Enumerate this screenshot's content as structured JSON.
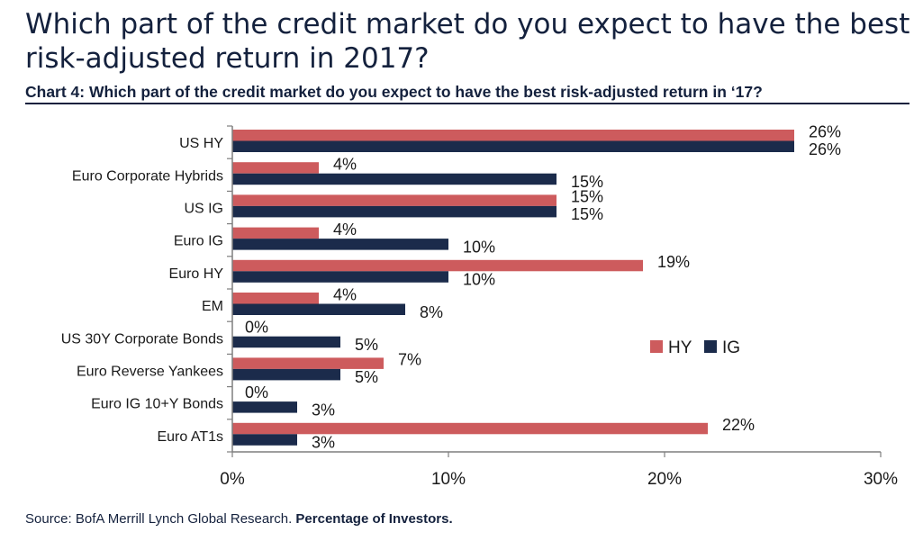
{
  "header": {
    "title": "Which part of the credit market do you expect to have the best risk-adjusted return in 2017?",
    "chart_title": "Chart 4: Which part of the credit market do you expect to have the best risk-adjusted return in ‘17?"
  },
  "footer": {
    "source": "Source: BofA Merrill Lynch Global Research.",
    "note": "Percentage of Investors."
  },
  "colors": {
    "hy": "#cd5b5d",
    "ig": "#1b2b4b",
    "axis": "#7f7f7f",
    "text": "#1a1a1a"
  },
  "chart_data": {
    "type": "bar",
    "orientation": "horizontal",
    "title": "Chart 4: Which part of the credit market do you expect to have the best risk-adjusted return in ‘17?",
    "categories": [
      "US HY",
      "Euro Corporate Hybrids",
      "US IG",
      "Euro IG",
      "Euro HY",
      "EM",
      "US 30Y Corporate Bonds",
      "Euro Reverse Yankees",
      "Euro IG 10+Y Bonds",
      "Euro AT1s"
    ],
    "series": [
      {
        "name": "HY",
        "values": [
          26,
          4,
          15,
          4,
          19,
          4,
          0,
          7,
          0,
          22
        ],
        "labels": [
          "26%",
          "4%",
          "15%",
          "4%",
          "19%",
          "4%",
          "0%",
          "7%",
          "0%",
          "22%"
        ]
      },
      {
        "name": "IG",
        "values": [
          26,
          15,
          15,
          10,
          10,
          8,
          5,
          5,
          3,
          3
        ],
        "labels": [
          "26%",
          "15%",
          "15%",
          "10%",
          "10%",
          "8%",
          "5%",
          "5%",
          "3%",
          "3%"
        ]
      }
    ],
    "xlim": [
      0,
      30
    ],
    "xticks": [
      0,
      10,
      20,
      30
    ],
    "xtick_labels": [
      "0%",
      "10%",
      "20%",
      "30%"
    ],
    "xlabel": "",
    "ylabel": "",
    "grid": false,
    "legend": {
      "position": "right-middle",
      "entries": [
        "HY",
        "IG"
      ]
    }
  }
}
